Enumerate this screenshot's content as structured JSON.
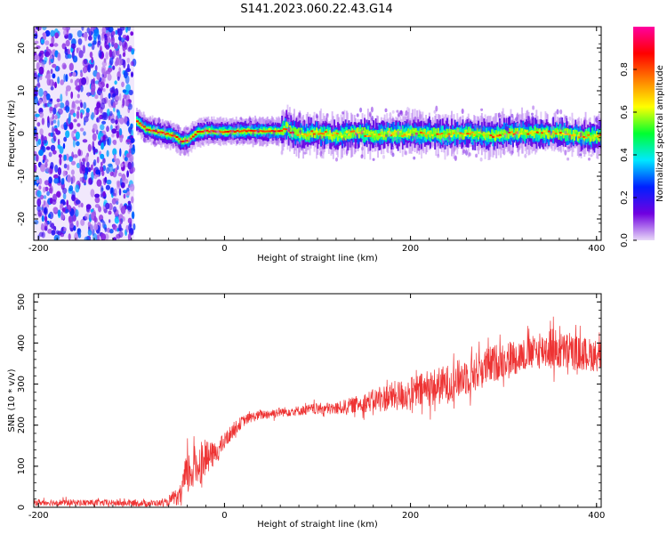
{
  "title": "S141.2023.060.22.43.G14",
  "chart_data": [
    {
      "type": "heatmap",
      "xlabel": "Height of straight line (km)",
      "ylabel": "Frequency (Hz)",
      "xlim": [
        -205,
        405
      ],
      "ylim": [
        -25,
        25
      ],
      "xticks": [
        -200,
        0,
        200,
        400
      ],
      "yticks": [
        -20,
        -10,
        0,
        10,
        20
      ],
      "colorbar": {
        "label": "Normalized spectral amplitude",
        "range": [
          0.0,
          1.0
        ],
        "ticks": [
          0.0,
          0.2,
          0.4,
          0.6,
          0.8
        ],
        "colormap": [
          "#e8d8f8",
          "#7000e0",
          "#0020ff",
          "#00e8ff",
          "#00ff30",
          "#ffff00",
          "#ff8000",
          "#ff0000",
          "#ff00a0"
        ]
      },
      "noise_region_x": [
        -205,
        -97
      ],
      "signal_track": {
        "x": [
          -95,
          -85,
          -75,
          -65,
          -55,
          -48,
          -40,
          -30,
          -20,
          -10,
          0,
          10,
          20,
          30,
          40,
          50,
          60,
          66,
          70,
          80,
          100,
          120,
          140,
          160,
          180,
          200,
          220,
          240,
          260,
          280,
          300,
          320,
          340,
          360,
          380,
          400
        ],
        "y": [
          3,
          1,
          0.5,
          0,
          -0.5,
          -1.8,
          -1.6,
          0.3,
          0.6,
          0.5,
          0.4,
          0.5,
          0.6,
          0.5,
          0.5,
          0.5,
          0.5,
          1.5,
          0.6,
          -0.2,
          0.1,
          -0.5,
          0.2,
          -0.3,
          -0.1,
          0.1,
          0.0,
          -0.3,
          0.1,
          -0.4,
          0.0,
          0.2,
          0.0,
          0.1,
          -0.5,
          -0.7
        ]
      }
    },
    {
      "type": "line",
      "xlabel": "Height of straight line (km)",
      "ylabel": "SNR (10 * v/v)",
      "xlim": [
        -205,
        405
      ],
      "ylim": [
        0,
        520
      ],
      "xticks": [
        -200,
        0,
        200,
        400
      ],
      "yticks": [
        0,
        100,
        200,
        300,
        400,
        500
      ],
      "series": [
        {
          "color": "#ee3333",
          "x": [
            -205,
            -150,
            -100,
            -70,
            -60,
            -55,
            -50,
            -45,
            -40,
            -30,
            -20,
            -10,
            0,
            10,
            20,
            30,
            40,
            60,
            80,
            100,
            120,
            140,
            160,
            180,
            200,
            220,
            240,
            260,
            280,
            300,
            320,
            340,
            350,
            360,
            380,
            400,
            405
          ],
          "y": [
            12,
            11,
            10,
            10,
            11,
            25,
            15,
            50,
            80,
            100,
            120,
            130,
            160,
            190,
            210,
            220,
            225,
            232,
            235,
            240,
            240,
            250,
            260,
            270,
            275,
            290,
            300,
            320,
            340,
            360,
            370,
            380,
            390,
            380,
            375,
            370,
            370
          ],
          "spread": [
            8,
            8,
            8,
            8,
            8,
            18,
            12,
            45,
            55,
            55,
            40,
            28,
            22,
            18,
            14,
            12,
            12,
            12,
            12,
            14,
            16,
            20,
            28,
            36,
            42,
            45,
            48,
            48,
            48,
            45,
            42,
            42,
            55,
            48,
            42,
            40,
            40
          ]
        }
      ]
    }
  ]
}
